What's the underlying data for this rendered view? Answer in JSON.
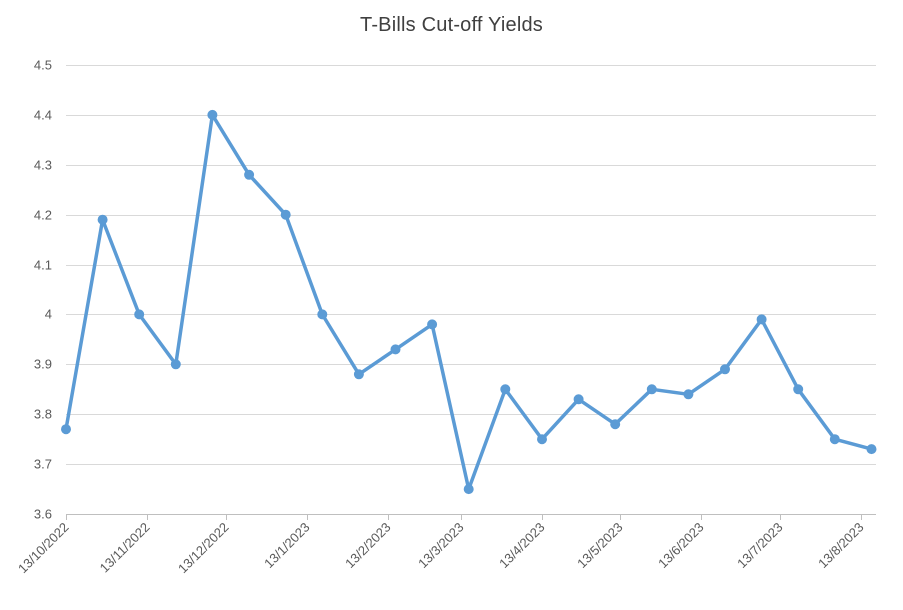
{
  "colors": {
    "series": "#5B9BD5",
    "gridline": "#d9d9d9",
    "axis": "#bfbfbf",
    "text": "#595959",
    "title": "#404040"
  },
  "chart_data": {
    "type": "line",
    "title": "T-Bills Cut-off Yields",
    "xlabel": "",
    "ylabel": "",
    "ylim": [
      3.6,
      4.5
    ],
    "y_ticks": [
      "3.6",
      "3.7",
      "3.8",
      "3.9",
      "4",
      "4.1",
      "4.2",
      "4.3",
      "4.4",
      "4.5"
    ],
    "x_axis_type": "date",
    "xlim": [
      "2022-10-13",
      "2023-08-13"
    ],
    "x_ticks": [
      {
        "date": "2022-10-13",
        "label": "13/10/2022"
      },
      {
        "date": "2022-11-13",
        "label": "13/11/2022"
      },
      {
        "date": "2022-12-13",
        "label": "13/12/2022"
      },
      {
        "date": "2023-01-13",
        "label": "13/1/2023"
      },
      {
        "date": "2023-02-13",
        "label": "13/2/2023"
      },
      {
        "date": "2023-03-13",
        "label": "13/3/2023"
      },
      {
        "date": "2023-04-13",
        "label": "13/4/2023"
      },
      {
        "date": "2023-05-13",
        "label": "13/5/2023"
      },
      {
        "date": "2023-06-13",
        "label": "13/6/2023"
      },
      {
        "date": "2023-07-13",
        "label": "13/7/2023"
      },
      {
        "date": "2023-08-13",
        "label": "13/8/2023"
      }
    ],
    "grid": true,
    "legend": "none",
    "series": [
      {
        "name": "",
        "points": [
          {
            "x": "2022-10-13",
            "y": 3.77
          },
          {
            "x": "2022-10-27",
            "y": 4.19
          },
          {
            "x": "2022-11-10",
            "y": 4.0
          },
          {
            "x": "2022-11-24",
            "y": 3.9
          },
          {
            "x": "2022-12-08",
            "y": 4.4
          },
          {
            "x": "2022-12-22",
            "y": 4.28
          },
          {
            "x": "2023-01-05",
            "y": 4.2
          },
          {
            "x": "2023-01-19",
            "y": 4.0
          },
          {
            "x": "2023-02-02",
            "y": 3.88
          },
          {
            "x": "2023-02-16",
            "y": 3.93
          },
          {
            "x": "2023-03-02",
            "y": 3.98
          },
          {
            "x": "2023-03-16",
            "y": 3.65
          },
          {
            "x": "2023-03-30",
            "y": 3.85
          },
          {
            "x": "2023-04-13",
            "y": 3.75
          },
          {
            "x": "2023-04-27",
            "y": 3.83
          },
          {
            "x": "2023-05-11",
            "y": 3.78
          },
          {
            "x": "2023-05-25",
            "y": 3.85
          },
          {
            "x": "2023-06-08",
            "y": 3.84
          },
          {
            "x": "2023-06-22",
            "y": 3.89
          },
          {
            "x": "2023-07-06",
            "y": 3.99
          },
          {
            "x": "2023-07-20",
            "y": 3.85
          },
          {
            "x": "2023-08-03",
            "y": 3.75
          },
          {
            "x": "2023-08-17",
            "y": 3.73
          }
        ]
      }
    ]
  }
}
